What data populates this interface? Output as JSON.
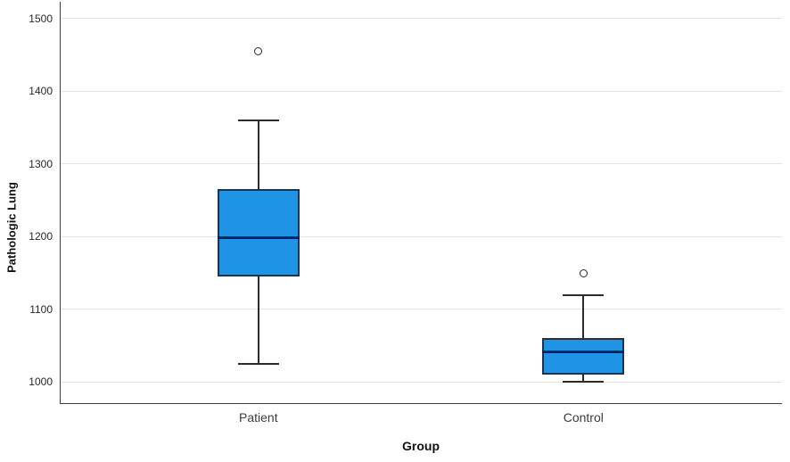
{
  "chart_data": {
    "type": "boxplot",
    "title": "",
    "xlabel": "Group",
    "ylabel": "Pathologic Lung",
    "categories": [
      "Patient",
      "Control"
    ],
    "yticks": [
      1000,
      1100,
      1200,
      1300,
      1400,
      1500
    ],
    "ylim": [
      971,
      1523
    ],
    "grid": "horizontal",
    "legend": "none",
    "series": [
      {
        "name": "Patient",
        "whisker_low": 1025,
        "q1": 1145,
        "median": 1198,
        "q3": 1265,
        "whisker_high": 1360,
        "outliers": [
          1455
        ]
      },
      {
        "name": "Control",
        "whisker_low": 1000,
        "q1": 1010,
        "median": 1042,
        "q3": 1060,
        "whisker_high": 1120,
        "outliers": [
          1150
        ]
      }
    ],
    "colors": {
      "box_fill": "#2094e4",
      "box_border": "#17354f",
      "median": "#0d2160",
      "whisker": "#2b2b2b",
      "outlier_stroke": "#262626",
      "grid": "#e3e3e3",
      "axis": "#3d3d3d",
      "background": "#ffffff"
    }
  }
}
